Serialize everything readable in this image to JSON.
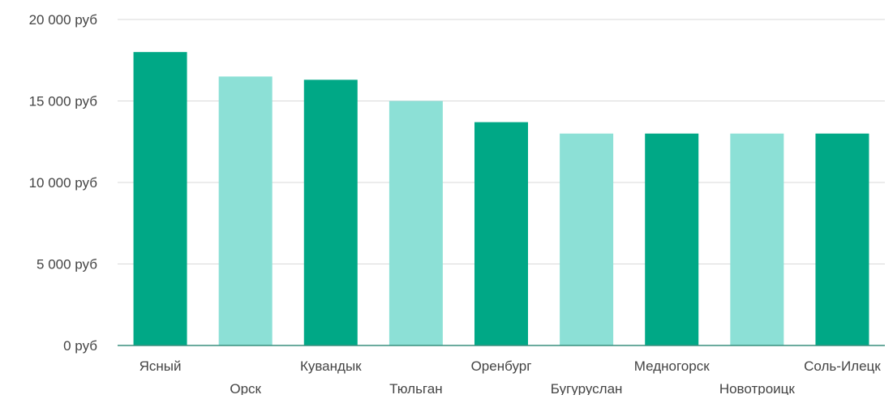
{
  "chart_data": {
    "type": "bar",
    "categories": [
      "Ясный",
      "Орск",
      "Кувандык",
      "Тюльган",
      "Оренбург",
      "Бугуруслан",
      "Медногорск",
      "Новотроицк",
      "Соль-Илецк"
    ],
    "values": [
      18000,
      16500,
      16300,
      15000,
      13700,
      13000,
      13000,
      13000,
      13000
    ],
    "ylim": [
      0,
      20000
    ],
    "yticks": [
      0,
      5000,
      10000,
      15000,
      20000
    ],
    "ytick_labels": [
      "0 руб",
      "5 000 руб",
      "10 000 руб",
      "15 000 руб",
      "20 000 руб"
    ],
    "grid": true,
    "colors": [
      "#00a886",
      "#8ce0d6"
    ],
    "axis_color": "#3a8f7f",
    "grid_color": "#d9d9d9"
  }
}
